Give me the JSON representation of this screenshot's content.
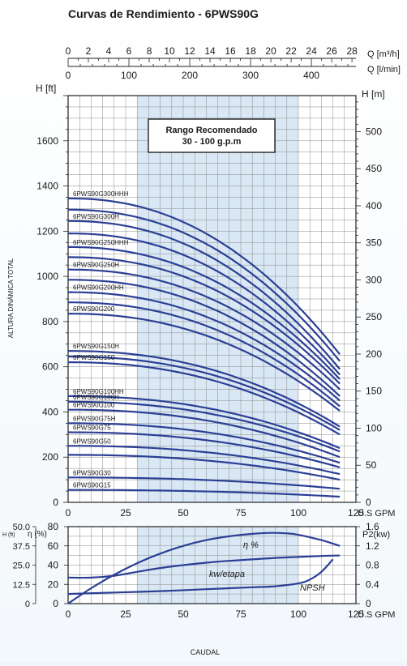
{
  "title": "Curvas de Rendimiento - 6PWS90G",
  "chart_data": [
    {
      "type": "line",
      "x_unit_label": "U.S GPM",
      "xlim": [
        0,
        125
      ],
      "x_ticks": [
        0,
        25,
        50,
        75,
        100,
        125
      ],
      "top_axes": [
        {
          "label": "Q [m³/h]",
          "ticks": [
            0,
            2,
            4,
            6,
            8,
            10,
            12,
            14,
            16,
            18,
            20,
            22,
            24,
            26,
            28
          ]
        },
        {
          "label": "Q [l/min]",
          "ticks": [
            0,
            100,
            200,
            300,
            400
          ]
        }
      ],
      "ylabel": "ALTURA DINÁMICA TOTAL",
      "left_axis_title": "H [ft]",
      "right_axis_title": "H [m]",
      "ylim_ft": [
        0,
        1800
      ],
      "ylim_m": [
        0,
        548.6
      ],
      "y_ticks_ft": [
        0,
        200,
        400,
        600,
        800,
        1000,
        1200,
        1400,
        1600
      ],
      "y_ticks_m": [
        0,
        50,
        100,
        150,
        200,
        250,
        300,
        350,
        400,
        450,
        500
      ],
      "recommended_range": {
        "x_from": 30,
        "x_to": 100,
        "label_line1": "Rango Recomendado",
        "label_line2": "30 - 100 g.p.m"
      },
      "curves_x_end": 118,
      "series": [
        {
          "name": "6PWS90G300HHH",
          "shutoff": 1345,
          "end": 655
        },
        {
          "name": "",
          "shutoff": 1295,
          "end": 625
        },
        {
          "name": "6PWS90G300H",
          "shutoff": 1245,
          "end": 590
        },
        {
          "name": "",
          "shutoff": 1190,
          "end": 565
        },
        {
          "name": "6PWS90G250HHH",
          "shutoff": 1130,
          "end": 545
        },
        {
          "name": "",
          "shutoff": 1085,
          "end": 525
        },
        {
          "name": "6PWS90G250H",
          "shutoff": 1030,
          "end": 500
        },
        {
          "name": "",
          "shutoff": 985,
          "end": 470
        },
        {
          "name": "6PWS90G200HH",
          "shutoff": 930,
          "end": 450
        },
        {
          "name": "",
          "shutoff": 885,
          "end": 425
        },
        {
          "name": "6PWS90G200",
          "shutoff": 835,
          "end": 405
        },
        {
          "name": "6PWS90G150H",
          "shutoff": 670,
          "end": 335
        },
        {
          "name": "",
          "shutoff": 645,
          "end": 320
        },
        {
          "name": "6PWS90G150",
          "shutoff": 620,
          "end": 300
        },
        {
          "name": "6PWS90G100HH",
          "shutoff": 470,
          "end": 240
        },
        {
          "name": "6PWS90G100H",
          "shutoff": 445,
          "end": 225
        },
        {
          "name": "6PWS90G100",
          "shutoff": 410,
          "end": 200
        },
        {
          "name": "6PWS90G75H",
          "shutoff": 350,
          "end": 175
        },
        {
          "name": "6PWS90G75",
          "shutoff": 310,
          "end": 155
        },
        {
          "name": "6PWS90G50",
          "shutoff": 250,
          "end": 125
        },
        {
          "name": "",
          "shutoff": 210,
          "end": 100
        },
        {
          "name": "6PWS90G30",
          "shutoff": 110,
          "end": 60
        },
        {
          "name": "6PWS90G15",
          "shutoff": 55,
          "end": 25
        }
      ]
    },
    {
      "type": "line",
      "x_unit_label": "U.S GPM",
      "xlim": [
        0,
        125
      ],
      "x_ticks": [
        0,
        25,
        50,
        75,
        100,
        125
      ],
      "xlabel": "CAUDAL",
      "left_axis_title_h": "H (ft)",
      "left_axis_title_eta": "η (%)",
      "right_axis_title": "P2(kw)",
      "y_ticks_h": [
        "50.0",
        "37.5",
        "25.0",
        "12.5",
        "0"
      ],
      "y_ticks_eta": [
        80,
        60,
        40,
        20,
        0
      ],
      "y_ticks_p2": [
        "1.6",
        "1.2",
        "0.8",
        "0.4",
        "0"
      ],
      "ylim_eta": [
        0,
        80
      ],
      "series": [
        {
          "name": "η %",
          "x": [
            0,
            10,
            20,
            30,
            40,
            50,
            60,
            70,
            80,
            88,
            95,
            100,
            110,
            118
          ],
          "y": [
            0,
            16,
            30,
            42,
            52,
            60,
            66,
            70,
            72.5,
            73.5,
            73,
            71.5,
            66,
            60
          ]
        },
        {
          "name": "kw/etapa",
          "x": [
            0,
            10,
            20,
            30,
            40,
            50,
            60,
            70,
            80,
            90,
            100,
            110,
            118
          ],
          "y": [
            27,
            27,
            29,
            33,
            37,
            40,
            42.5,
            44.5,
            46,
            47.5,
            48.5,
            49.5,
            50
          ]
        },
        {
          "name": "NPSH",
          "x": [
            0,
            20,
            40,
            60,
            80,
            90,
            100,
            105,
            110,
            115
          ],
          "y": [
            10,
            11.5,
            13,
            15,
            17,
            18,
            21,
            25,
            33,
            46
          ]
        }
      ]
    }
  ]
}
